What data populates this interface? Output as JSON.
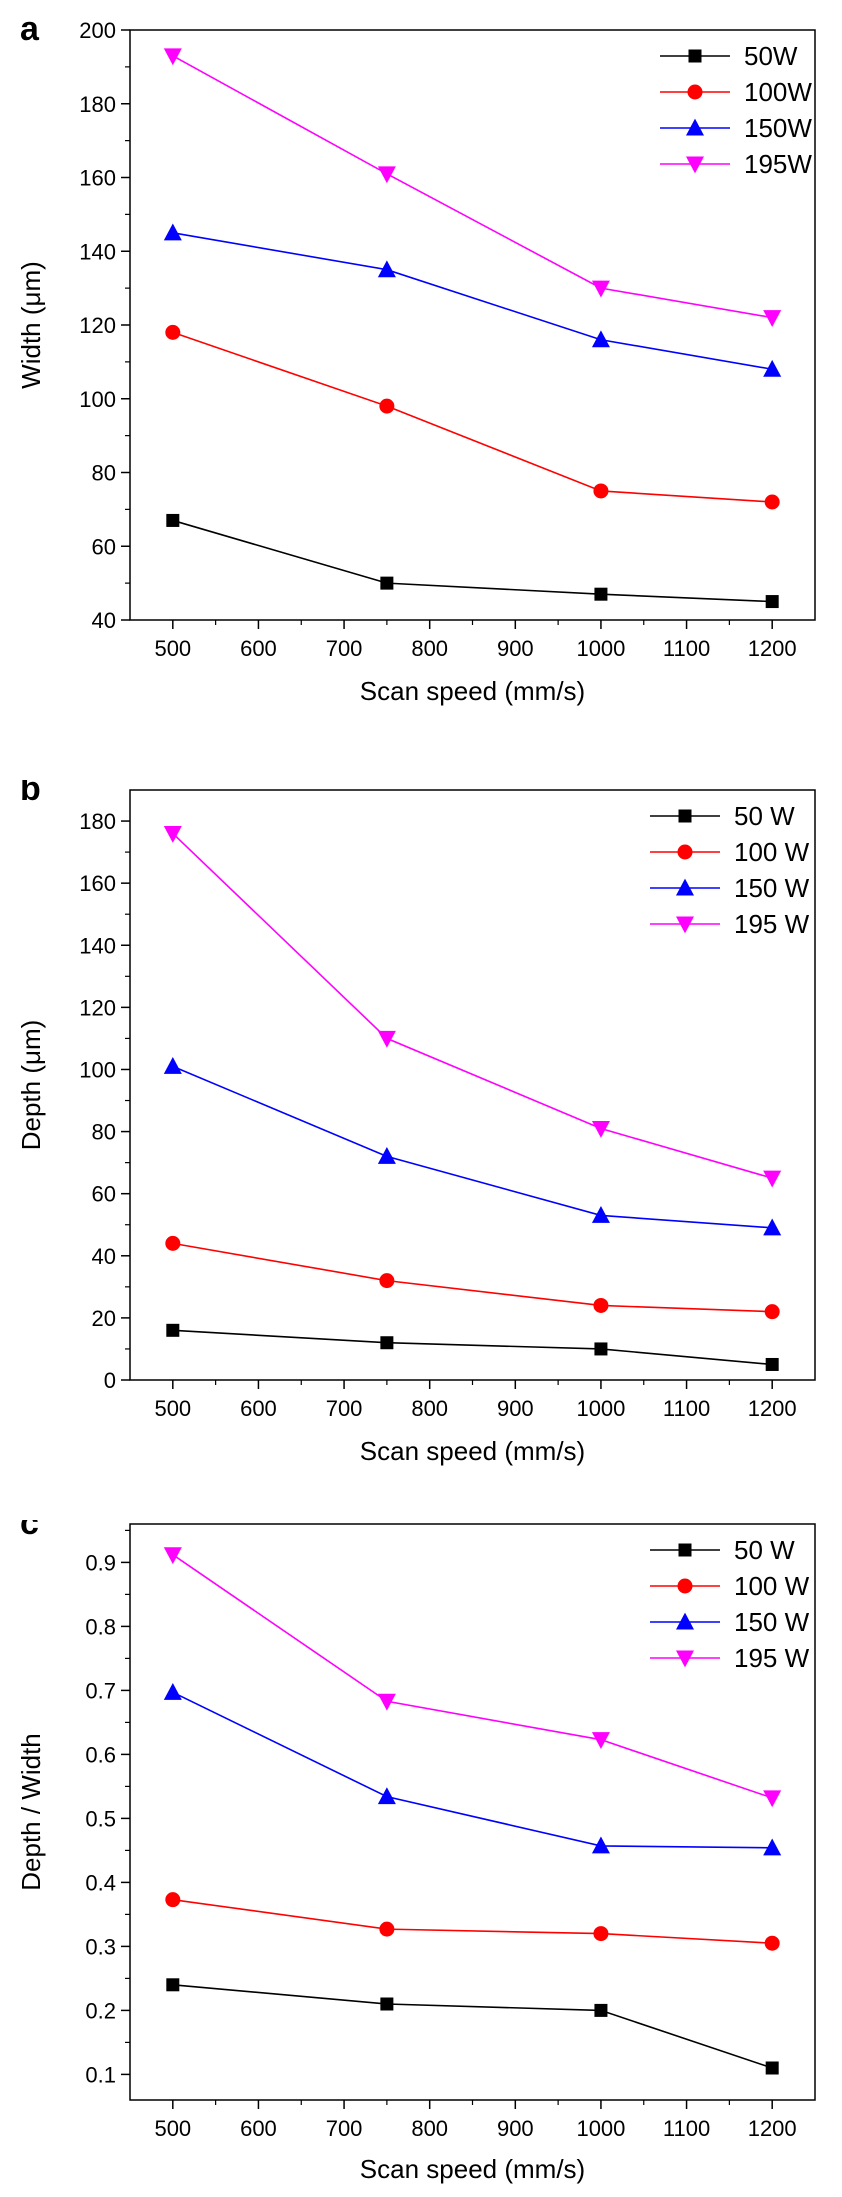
{
  "chart_data": [
    {
      "type": "line",
      "panel_label": "a",
      "xlabel": "Scan speed (mm/s)",
      "ylabel": "Width (μm)",
      "x": [
        500,
        750,
        1000,
        1200
      ],
      "xlim": [
        450,
        1250
      ],
      "xticks": [
        "500",
        "600",
        "700",
        "800",
        "900",
        "1000",
        "1100",
        "1200"
      ],
      "ylim": [
        40,
        200
      ],
      "yticks": [
        "40",
        "60",
        "80",
        "100",
        "120",
        "140",
        "160",
        "180",
        "200"
      ],
      "legend_position": "top-right",
      "grid": false,
      "series": [
        {
          "name": "50W",
          "values": [
            67,
            50,
            47,
            45
          ],
          "color": "#000000",
          "marker": "square"
        },
        {
          "name": "100W",
          "values": [
            118,
            98,
            75,
            72
          ],
          "color": "#ff0000",
          "marker": "circle"
        },
        {
          "name": "150W",
          "values": [
            145,
            135,
            116,
            108
          ],
          "color": "#0000ff",
          "marker": "triangle-up"
        },
        {
          "name": "195W",
          "values": [
            193,
            161,
            130,
            122
          ],
          "color": "#ff00ff",
          "marker": "triangle-down"
        }
      ]
    },
    {
      "type": "line",
      "panel_label": "b",
      "xlabel": "Scan speed (mm/s)",
      "ylabel": "Depth (μm)",
      "x": [
        500,
        750,
        1000,
        1200
      ],
      "xlim": [
        450,
        1250
      ],
      "xticks": [
        "500",
        "600",
        "700",
        "800",
        "900",
        "1000",
        "1100",
        "1200"
      ],
      "ylim": [
        0,
        190
      ],
      "yticks": [
        "0",
        "20",
        "40",
        "60",
        "80",
        "100",
        "120",
        "140",
        "160",
        "180"
      ],
      "legend_position": "top-right",
      "grid": false,
      "series": [
        {
          "name": "50 W",
          "values": [
            16,
            12,
            10,
            5
          ],
          "color": "#000000",
          "marker": "square"
        },
        {
          "name": "100 W",
          "values": [
            44,
            32,
            24,
            22
          ],
          "color": "#ff0000",
          "marker": "circle"
        },
        {
          "name": "150 W",
          "values": [
            101,
            72,
            53,
            49
          ],
          "color": "#0000ff",
          "marker": "triangle-up"
        },
        {
          "name": "195 W",
          "values": [
            176,
            110,
            81,
            65
          ],
          "color": "#ff00ff",
          "marker": "triangle-down"
        }
      ]
    },
    {
      "type": "line",
      "panel_label": "c",
      "xlabel": "Scan speed (mm/s)",
      "ylabel": "Depth / Width",
      "x": [
        500,
        750,
        1000,
        1200
      ],
      "xlim": [
        450,
        1250
      ],
      "xticks": [
        "500",
        "600",
        "700",
        "800",
        "900",
        "1000",
        "1100",
        "1200"
      ],
      "ylim": [
        0.06,
        0.96
      ],
      "yticks": [
        "0.1",
        "0.2",
        "0.3",
        "0.4",
        "0.5",
        "0.6",
        "0.7",
        "0.8",
        "0.9"
      ],
      "legend_position": "top-right",
      "grid": false,
      "series": [
        {
          "name": "50 W",
          "values": [
            0.24,
            0.21,
            0.2,
            0.11
          ],
          "color": "#000000",
          "marker": "square"
        },
        {
          "name": "100 W",
          "values": [
            0.373,
            0.327,
            0.32,
            0.305
          ],
          "color": "#ff0000",
          "marker": "circle"
        },
        {
          "name": "150 W",
          "values": [
            0.697,
            0.534,
            0.457,
            0.454
          ],
          "color": "#0000ff",
          "marker": "triangle-up"
        },
        {
          "name": "195 W",
          "values": [
            0.912,
            0.683,
            0.623,
            0.532
          ],
          "color": "#ff00ff",
          "marker": "triangle-down"
        }
      ]
    }
  ]
}
